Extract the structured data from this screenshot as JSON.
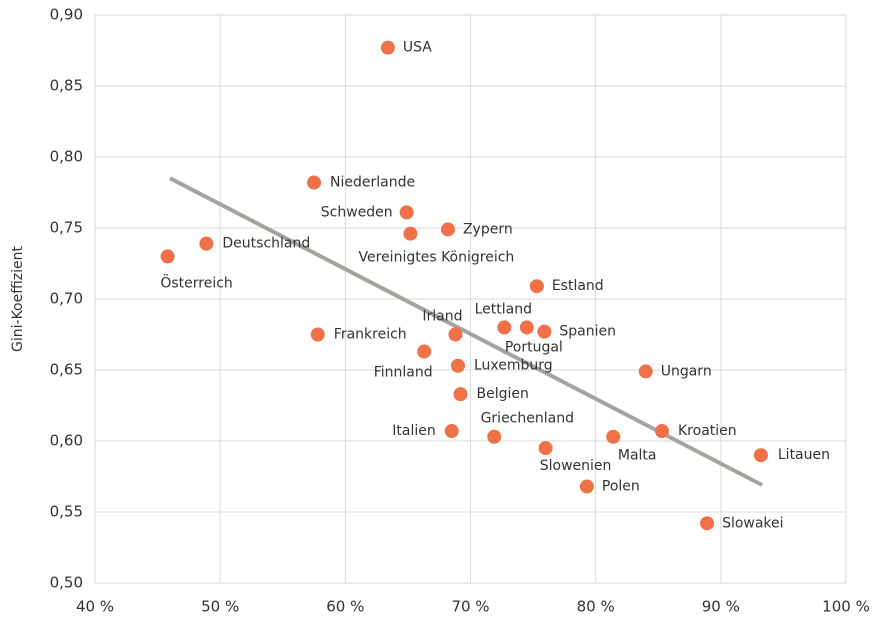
{
  "chart_data": {
    "type": "scatter",
    "y_label": "Gini-Koeffizient",
    "xlim": [
      40,
      100
    ],
    "ylim": [
      0.5,
      0.9
    ],
    "xticks": [
      {
        "value": 40,
        "label": "40 %"
      },
      {
        "value": 50,
        "label": "50 %"
      },
      {
        "value": 60,
        "label": "60 %"
      },
      {
        "value": 70,
        "label": "70 %"
      },
      {
        "value": 80,
        "label": "80 %"
      },
      {
        "value": 90,
        "label": "90 %"
      },
      {
        "value": 100,
        "label": "100 %"
      }
    ],
    "yticks": [
      {
        "value": 0.5,
        "label": "0,50"
      },
      {
        "value": 0.55,
        "label": "0,55"
      },
      {
        "value": 0.6,
        "label": "0,60"
      },
      {
        "value": 0.65,
        "label": "0,65"
      },
      {
        "value": 0.7,
        "label": "0,70"
      },
      {
        "value": 0.75,
        "label": "0,75"
      },
      {
        "value": 0.8,
        "label": "0,80"
      },
      {
        "value": 0.85,
        "label": "0,85"
      },
      {
        "value": 0.9,
        "label": "0,90"
      }
    ],
    "grid": true,
    "color": "#f07048",
    "labels": [
      "USA",
      "Niederlande",
      "Schweden",
      "Zypern",
      "Vereinigtes Königreich",
      "Deutschland",
      "Österreich",
      "Estland",
      "Irland",
      "Lettland",
      "Portugal",
      "Spanien",
      "Frankreich",
      "Finnland",
      "Luxemburg",
      "Ungarn",
      "Belgien",
      "Italien",
      "Griechenland",
      "Kroatien",
      "Malta",
      "Slowenien",
      "Litauen",
      "Polen",
      "Slowakei"
    ],
    "x": [
      63.4,
      57.5,
      64.9,
      68.2,
      65.2,
      48.9,
      45.8,
      75.3,
      68.8,
      72.7,
      74.5,
      75.9,
      57.8,
      66.3,
      69.0,
      84.0,
      69.2,
      68.5,
      71.9,
      85.3,
      81.4,
      76.0,
      93.2,
      79.3,
      88.9
    ],
    "y": [
      0.877,
      0.782,
      0.761,
      0.749,
      0.746,
      0.739,
      0.73,
      0.709,
      0.675,
      0.68,
      0.68,
      0.677,
      0.675,
      0.663,
      0.653,
      0.649,
      0.633,
      0.607,
      0.603,
      0.607,
      0.603,
      0.595,
      0.59,
      0.568,
      0.542
    ],
    "trendline": {
      "color": "#a6a39f",
      "x": [
        46.0,
        93.3
      ],
      "y": [
        0.785,
        0.569
      ]
    }
  }
}
